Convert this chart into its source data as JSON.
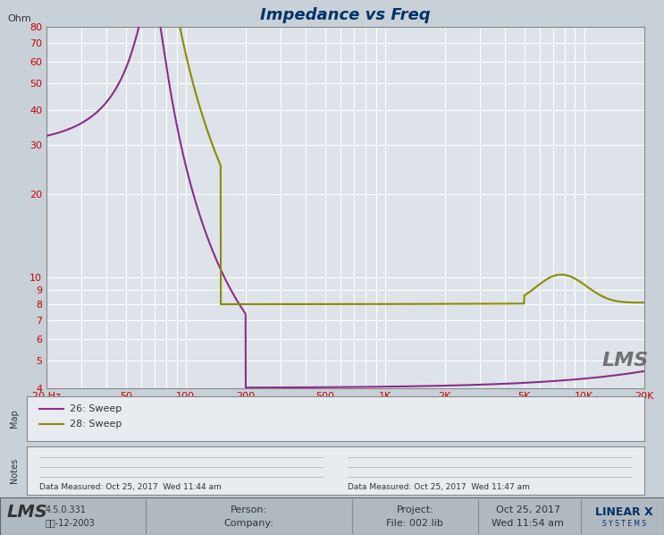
{
  "title": "Impedance vs Freq",
  "ylabel": "Ohm",
  "bg_color": "#c8d0d8",
  "plot_bg_color": "#dde3e8",
  "grid_color": "#ffffff",
  "line1_color": "#8b2d8b",
  "line2_color": "#8b8b00",
  "line1_label": "26: Sweep",
  "line2_label": "28: Sweep",
  "xlim": [
    20,
    20000
  ],
  "ylim": [
    4,
    80
  ],
  "xticks": [
    20,
    50,
    100,
    200,
    500,
    1000,
    2000,
    5000,
    10000,
    20000
  ],
  "xtick_labels": [
    "20 Hz",
    "50",
    "100",
    "200",
    "500",
    "1K",
    "2K",
    "5K",
    "10K",
    "20K"
  ],
  "yticks": [
    4,
    5,
    6,
    7,
    8,
    9,
    10,
    20,
    30,
    40,
    50,
    60,
    70,
    80
  ],
  "ytick_labels": [
    "4",
    "5",
    "6",
    "7",
    "8",
    "9",
    "10",
    "20",
    "30",
    "40",
    "50",
    "60",
    "70",
    "80"
  ],
  "footer_bg": "#b0b8c0",
  "lms_text": "LMS",
  "version_text": "4.5.0.331",
  "date_text1": "二月-12-2003",
  "person_label": "Person:",
  "company_label": "Company:",
  "project_label": "Project:",
  "file_label": "File: 002.lib",
  "datetime_label": "Oct 25, 2017",
  "time_label": "Wed 11:54 am",
  "data_measured1": "Data Measured: Oct 25, 2017  Wed 11:44 am",
  "data_measured2": "Data Measured: Oct 25, 2017  Wed 11:47 am",
  "map_label": "Map",
  "notes_label": "Notes"
}
